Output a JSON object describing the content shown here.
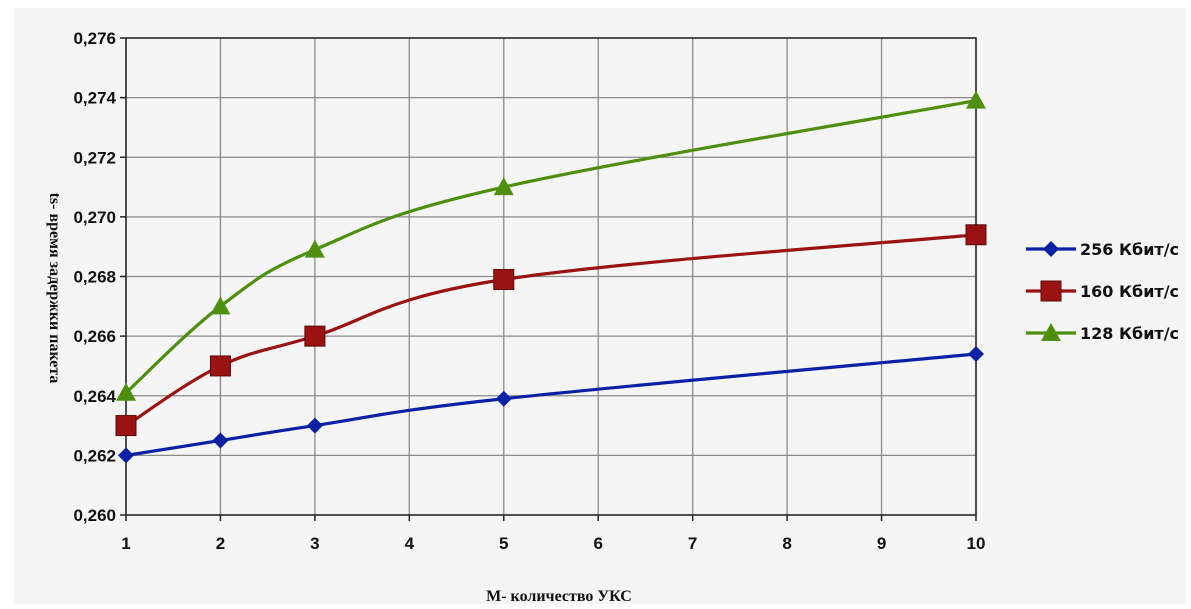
{
  "chart_data": {
    "type": "line",
    "xlabel": "M- количество УКС",
    "ylabel": "ts- время задержки пакета",
    "x_ticks": [
      "1",
      "2",
      "3",
      "4",
      "5",
      "6",
      "7",
      "8",
      "9",
      "10"
    ],
    "y_ticks": [
      "0,260",
      "0,262",
      "0,264",
      "0,266",
      "0,268",
      "0,270",
      "0,272",
      "0,274",
      "0,276"
    ],
    "xlim": [
      1,
      10
    ],
    "ylim": [
      0.26,
      0.276
    ],
    "grid": true,
    "legend_position": "right",
    "series": [
      {
        "name": "256 Кбит/с",
        "color": "#0a21a6",
        "marker": "diamond",
        "x": [
          1,
          2,
          3,
          5,
          10
        ],
        "y": [
          0.262,
          0.2625,
          0.263,
          0.2639,
          0.2654
        ]
      },
      {
        "name": "160 Кбит/с",
        "color": "#9a1212",
        "marker": "square",
        "x": [
          1,
          2,
          3,
          5,
          10
        ],
        "y": [
          0.263,
          0.265,
          0.266,
          0.2679,
          0.2694
        ]
      },
      {
        "name": "128 Кбит/с",
        "color": "#4e8f0f",
        "marker": "triangle",
        "x": [
          1,
          2,
          3,
          5,
          10
        ],
        "y": [
          0.2641,
          0.267,
          0.2689,
          0.271,
          0.2739
        ]
      }
    ]
  }
}
